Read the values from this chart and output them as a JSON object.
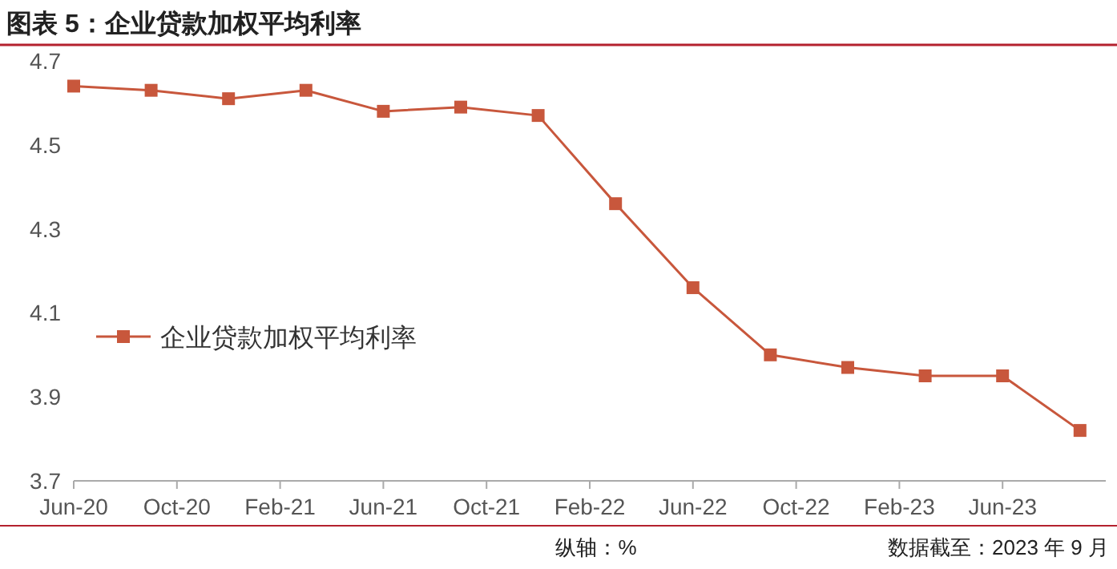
{
  "chart_data": {
    "type": "line",
    "title": "图表 5：企业贷款加权平均利率",
    "annotations": [
      "纵轴：%",
      "数据截至：2023 年 9 月"
    ],
    "x": [
      "2020-06",
      "2020-09",
      "2020-12",
      "2021-03",
      "2021-06",
      "2021-09",
      "2021-12",
      "2022-03",
      "2022-06",
      "2022-09",
      "2022-12",
      "2023-03",
      "2023-06",
      "2023-09"
    ],
    "series": [
      {
        "name": "企业贷款加权平均利率",
        "color": "#c8573c",
        "values": [
          4.64,
          4.63,
          4.61,
          4.63,
          4.58,
          4.59,
          4.57,
          4.36,
          4.16,
          4.0,
          3.97,
          3.95,
          3.95,
          3.82
        ]
      }
    ],
    "xlim": [
      "2020-06",
      "2023-10"
    ],
    "xticks": [
      {
        "value": "2020-06",
        "label": "Jun-20"
      },
      {
        "value": "2020-10",
        "label": "Oct-20"
      },
      {
        "value": "2021-02",
        "label": "Feb-21"
      },
      {
        "value": "2021-06",
        "label": "Jun-21"
      },
      {
        "value": "2021-10",
        "label": "Oct-21"
      },
      {
        "value": "2022-02",
        "label": "Feb-22"
      },
      {
        "value": "2022-06",
        "label": "Jun-22"
      },
      {
        "value": "2022-10",
        "label": "Oct-22"
      },
      {
        "value": "2023-02",
        "label": "Feb-23"
      },
      {
        "value": "2023-06",
        "label": "Jun-23"
      }
    ],
    "ylim": [
      3.7,
      4.7
    ],
    "yticks": [
      3.7,
      3.9,
      4.1,
      4.3,
      4.5,
      4.7
    ],
    "marker": "square",
    "line_style": "solid",
    "legend": "left"
  }
}
